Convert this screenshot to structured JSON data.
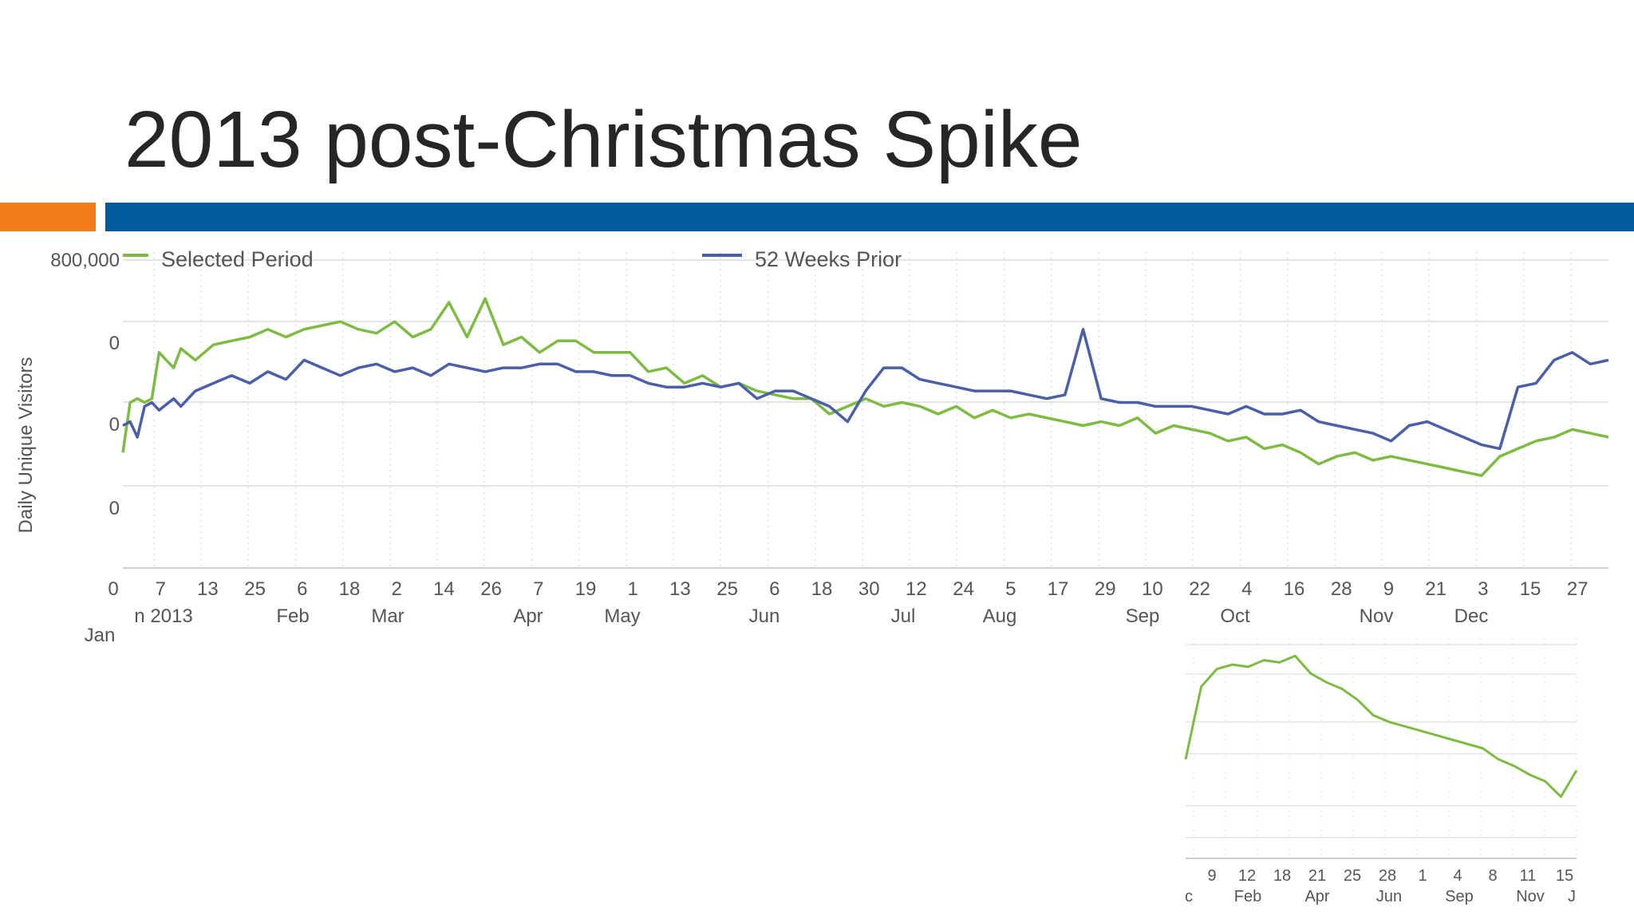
{
  "slide": {
    "title": "2013 post-Christmas Spike",
    "accent_color": "#F07D1A",
    "band_color": "#005A9C"
  },
  "chart_data": [
    {
      "type": "line",
      "ylabel": "Daily Unique Visitors",
      "y_tick_labels": [
        "800,000",
        "0",
        "0",
        "0"
      ],
      "ylim": [
        0,
        800000
      ],
      "grid": true,
      "legend": [
        "Selected Period",
        "52 Weeks Prior"
      ],
      "legend_placement": "top",
      "x_tick_labels": [
        "0",
        "7",
        "13",
        "25",
        "6",
        "18",
        "2",
        "14",
        "26",
        "7",
        "19",
        "1",
        "13",
        "25",
        "6",
        "18",
        "30",
        "12",
        "24",
        "5",
        "17",
        "29",
        "10",
        "22",
        "4",
        "16",
        "28",
        "9",
        "21",
        "3",
        "15",
        "27"
      ],
      "x_month_labels": [
        "n 2013",
        "Feb",
        "Mar",
        "Apr",
        "May",
        "Jun",
        "Jul",
        "Aug",
        "Sep",
        "Oct",
        "Nov",
        "Dec"
      ],
      "x_extra_label": "Jan",
      "series": [
        {
          "name": "Selected Period",
          "color": "#7DBB42",
          "x_day": [
            0,
            2,
            4,
            6,
            8,
            10,
            14,
            16,
            20,
            25,
            30,
            35,
            40,
            45,
            50,
            55,
            60,
            65,
            70,
            75,
            80,
            85,
            90,
            95,
            100,
            105,
            110,
            115,
            120,
            125,
            130,
            135,
            140,
            145,
            150,
            155,
            160,
            165,
            170,
            175,
            180,
            185,
            190,
            195,
            200,
            205,
            210,
            215,
            220,
            225,
            230,
            235,
            240,
            245,
            250,
            255,
            260,
            265,
            270,
            275,
            280,
            285,
            290,
            295,
            300,
            305,
            310,
            315,
            320,
            325,
            330,
            335,
            340,
            345,
            350,
            355,
            360,
            365,
            370,
            375,
            380,
            385,
            390,
            395,
            400,
            405,
            410
          ],
          "values": [
            300000,
            430000,
            440000,
            430000,
            440000,
            560000,
            520000,
            570000,
            540000,
            580000,
            590000,
            600000,
            620000,
            600000,
            620000,
            630000,
            640000,
            620000,
            610000,
            640000,
            600000,
            620000,
            690000,
            600000,
            700000,
            580000,
            600000,
            560000,
            590000,
            590000,
            560000,
            560000,
            560000,
            510000,
            520000,
            480000,
            500000,
            470000,
            480000,
            460000,
            450000,
            440000,
            440000,
            400000,
            420000,
            440000,
            420000,
            430000,
            420000,
            400000,
            420000,
            390000,
            410000,
            390000,
            400000,
            390000,
            380000,
            370000,
            380000,
            370000,
            390000,
            350000,
            370000,
            360000,
            350000,
            330000,
            340000,
            310000,
            320000,
            300000,
            270000,
            290000,
            300000,
            280000,
            290000,
            280000,
            270000,
            260000,
            250000,
            240000,
            290000,
            310000,
            330000,
            340000,
            360000,
            350000,
            340000
          ]
        },
        {
          "name": "52 Weeks Prior",
          "color": "#4A5FA7",
          "x_day": [
            0,
            2,
            4,
            6,
            8,
            10,
            14,
            16,
            20,
            25,
            30,
            35,
            40,
            45,
            50,
            55,
            60,
            65,
            70,
            75,
            80,
            85,
            90,
            95,
            100,
            105,
            110,
            115,
            120,
            125,
            130,
            135,
            140,
            145,
            150,
            155,
            160,
            165,
            170,
            175,
            180,
            185,
            190,
            195,
            200,
            205,
            210,
            215,
            220,
            225,
            230,
            235,
            240,
            245,
            250,
            255,
            260,
            265,
            270,
            275,
            280,
            285,
            290,
            295,
            300,
            305,
            310,
            315,
            320,
            325,
            330,
            335,
            340,
            345,
            350,
            355,
            360,
            365,
            370,
            375,
            380,
            385,
            390,
            395,
            400,
            405,
            410
          ],
          "values": [
            370000,
            380000,
            340000,
            420000,
            430000,
            410000,
            440000,
            420000,
            460000,
            480000,
            500000,
            480000,
            510000,
            490000,
            540000,
            520000,
            500000,
            520000,
            530000,
            510000,
            520000,
            500000,
            530000,
            520000,
            510000,
            520000,
            520000,
            530000,
            530000,
            510000,
            510000,
            500000,
            500000,
            480000,
            470000,
            470000,
            480000,
            470000,
            480000,
            440000,
            460000,
            460000,
            440000,
            420000,
            380000,
            460000,
            520000,
            520000,
            490000,
            480000,
            470000,
            460000,
            460000,
            460000,
            450000,
            440000,
            450000,
            620000,
            440000,
            430000,
            430000,
            420000,
            420000,
            420000,
            410000,
            400000,
            420000,
            400000,
            400000,
            410000,
            380000,
            370000,
            360000,
            350000,
            330000,
            370000,
            380000,
            360000,
            340000,
            320000,
            310000,
            470000,
            480000,
            540000,
            560000,
            530000,
            540000
          ]
        }
      ]
    },
    {
      "type": "line",
      "x_tick_labels": [
        "9",
        "12",
        "18",
        "21",
        "25",
        "28",
        "1",
        "4",
        "8",
        "11",
        "15"
      ],
      "x_month_labels": [
        "c",
        "Feb",
        "Apr",
        "Jun",
        "Sep",
        "Nov",
        "J"
      ],
      "grid": true,
      "series": [
        {
          "color": "#7DBB42",
          "x_index": [
            0,
            2,
            4,
            6,
            8,
            10,
            12,
            14,
            16,
            18,
            20,
            22,
            24,
            26,
            28,
            30,
            32,
            34,
            36,
            38,
            40,
            42,
            44,
            46,
            48,
            50
          ],
          "values": [
            0.45,
            0.78,
            0.86,
            0.88,
            0.87,
            0.9,
            0.89,
            0.92,
            0.84,
            0.8,
            0.77,
            0.72,
            0.65,
            0.62,
            0.6,
            0.58,
            0.56,
            0.54,
            0.52,
            0.5,
            0.45,
            0.42,
            0.38,
            0.35,
            0.28,
            0.4
          ]
        }
      ]
    }
  ]
}
